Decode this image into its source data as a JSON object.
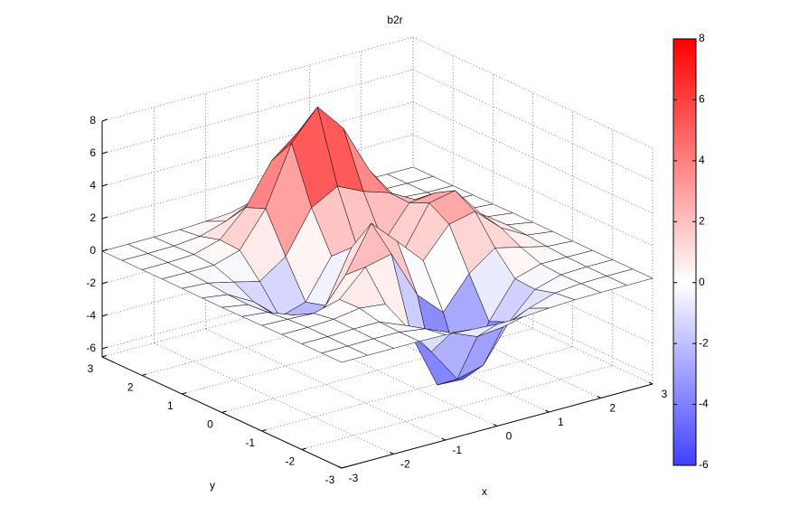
{
  "chart_data": {
    "type": "surface",
    "title": "b2r",
    "x_label": "x",
    "y_label": "y",
    "x": [
      -3,
      -2.5,
      -2,
      -1.5,
      -1,
      -0.5,
      0,
      0.5,
      1,
      1.5,
      2,
      2.5,
      3
    ],
    "y": [
      -3,
      -2.5,
      -2,
      -1.5,
      -1,
      -0.5,
      0,
      0.5,
      1,
      1.5,
      2,
      2.5,
      3
    ],
    "z": [
      [
        0,
        0,
        0,
        0,
        -0.03,
        -0.14,
        -0.24,
        -0.22,
        -0.11,
        -0.03,
        -0.01,
        0,
        0
      ],
      [
        0,
        0,
        0.02,
        0,
        -0.23,
        -0.91,
        -1.57,
        -1.41,
        -0.69,
        -0.18,
        -0.03,
        0,
        0
      ],
      [
        0,
        0.01,
        0.05,
        0.05,
        -0.59,
        -2.64,
        -4.75,
        -4.34,
        -2.1,
        -0.53,
        -0.06,
        0,
        0
      ],
      [
        0,
        0.01,
        0.08,
        0.33,
        0.15,
        -2.19,
        -5.68,
        -5.76,
        -2.64,
        -0.44,
        0.04,
        0.03,
        0
      ],
      [
        -0.01,
        -0.06,
        -0.13,
        0.3,
        1.86,
        2.23,
        -0.72,
        -2.22,
        -0.27,
        0.88,
        0.5,
        0.11,
        0.01
      ],
      [
        -0.03,
        -0.2,
        -0.8,
        -1.21,
        0.8,
        3.55,
        2,
        0.39,
        2.2,
        2.56,
        1.12,
        0.24,
        0.03
      ],
      [
        -0.04,
        -0.3,
        -1.33,
        -2.77,
        -1.65,
        1.48,
        0.98,
        0.38,
        2.94,
        3.27,
        1.41,
        0.3,
        0.03
      ],
      [
        -0.03,
        -0.25,
        -1.12,
        -2.49,
        -2,
        0.39,
        0.46,
        0.38,
        2.38,
        2.56,
        1.09,
        0.23,
        0.03
      ],
      [
        -0.01,
        -0.11,
        -0.48,
        -0.87,
        0.23,
        2.8,
        3.69,
        2.94,
        2.43,
        1.58,
        0.58,
        0.12,
        0.01
      ],
      [
        0,
        -0.02,
        -0.01,
        0.48,
        2.61,
        6.2,
        8,
        6.25,
        3.25,
        1.19,
        0.29,
        0.05,
        0
      ],
      [
        0,
        0.01,
        0.08,
        0.55,
        2.1,
        4.55,
        5.85,
        4.56,
        2.21,
        0.68,
        0.13,
        0.02,
        0
      ],
      [
        0,
        0,
        0.03,
        0.19,
        0.69,
        1.47,
        1.89,
        1.47,
        0.7,
        0.21,
        0.04,
        0,
        0
      ],
      [
        0,
        0,
        0.01,
        0.03,
        0.11,
        0.23,
        0.3,
        0.23,
        0.11,
        0.03,
        0.01,
        0,
        0
      ]
    ],
    "xlim": [
      -3,
      3
    ],
    "ylim": [
      -3,
      3
    ],
    "zlim": [
      -6.5,
      8
    ],
    "xticks": [
      -3,
      -2,
      -1,
      0,
      1,
      2,
      3
    ],
    "yticks": [
      -3,
      -2,
      -1,
      0,
      1,
      2,
      3
    ],
    "zticks": [
      -6,
      -4,
      -2,
      0,
      2,
      4,
      6,
      8
    ],
    "colormap": "b2r",
    "clim": [
      -6,
      8
    ],
    "cticks": [
      -6,
      -4,
      -2,
      0,
      2,
      4,
      6,
      8
    ],
    "edge_color": "#000000",
    "grid": true
  }
}
